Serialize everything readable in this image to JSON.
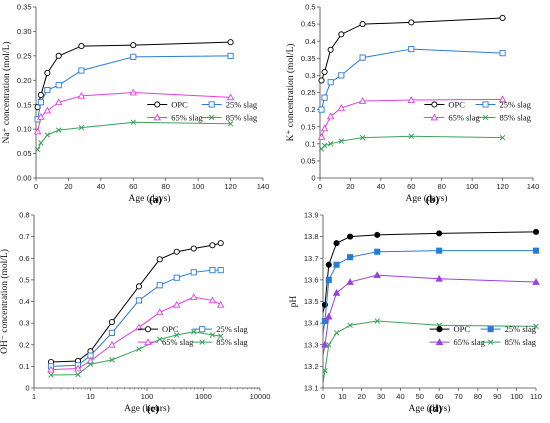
{
  "chart_data": [
    {
      "type": "line",
      "panel_label": "(a)",
      "xlabel": "Age (days)",
      "ylabel": "Na⁺ concentration (mol/L)",
      "xlim": [
        0,
        140
      ],
      "ylim": [
        0,
        0.35
      ],
      "x_ticks": [
        "0",
        "20",
        "40",
        "60",
        "80",
        "100",
        "120",
        "140"
      ],
      "y_ticks": [
        "0.00",
        "0.05",
        "0.10",
        "0.15",
        "0.20",
        "0.25",
        "0.30",
        "0.35"
      ],
      "legend_position": "bottom-right",
      "legend_cols": 2,
      "series": [
        {
          "name": "OPC",
          "color": "#000000",
          "marker": "circle-open",
          "x": [
            1,
            3,
            7,
            14,
            28,
            60,
            120
          ],
          "y": [
            0.145,
            0.17,
            0.215,
            0.25,
            0.27,
            0.272,
            0.278
          ]
        },
        {
          "name": "25% slag",
          "color": "#2b7bd6",
          "marker": "square-open",
          "x": [
            1,
            3,
            7,
            14,
            28,
            60,
            120
          ],
          "y": [
            0.12,
            0.155,
            0.18,
            0.19,
            0.22,
            0.248,
            0.25
          ]
        },
        {
          "name": "65% slag",
          "color": "#e040e0",
          "marker": "triangle-open",
          "x": [
            1,
            3,
            7,
            14,
            28,
            60,
            120
          ],
          "y": [
            0.095,
            0.125,
            0.138,
            0.155,
            0.168,
            0.175,
            0.165
          ]
        },
        {
          "name": "85% slag",
          "color": "#3aa35a",
          "marker": "x",
          "x": [
            1,
            3,
            7,
            14,
            28,
            60,
            120
          ],
          "y": [
            0.058,
            0.072,
            0.088,
            0.098,
            0.103,
            0.114,
            0.111
          ]
        }
      ]
    },
    {
      "type": "line",
      "panel_label": "(b)",
      "xlabel": "Age (days)",
      "ylabel": "K⁺ concentration (mol/L)",
      "xlim": [
        0,
        140
      ],
      "ylim": [
        0,
        0.5
      ],
      "x_ticks": [
        "0",
        "20",
        "40",
        "60",
        "80",
        "100",
        "120",
        "140"
      ],
      "y_ticks": [
        "0",
        "0.05",
        "0.1",
        "0.15",
        "0.2",
        "0.25",
        "0.3",
        "0.35",
        "0.4",
        "0.45",
        "0.5"
      ],
      "legend_position": "bottom-right",
      "legend_cols": 2,
      "series": [
        {
          "name": "OPC",
          "color": "#000000",
          "marker": "circle-open",
          "x": [
            1,
            3,
            7,
            14,
            28,
            60,
            120
          ],
          "y": [
            0.285,
            0.31,
            0.375,
            0.42,
            0.45,
            0.455,
            0.468
          ]
        },
        {
          "name": "25% slag",
          "color": "#2b7bd6",
          "marker": "square-open",
          "x": [
            1,
            3,
            7,
            14,
            28,
            60,
            120
          ],
          "y": [
            0.2,
            0.235,
            0.28,
            0.3,
            0.352,
            0.377,
            0.365
          ]
        },
        {
          "name": "65% slag",
          "color": "#e040e0",
          "marker": "triangle-open",
          "x": [
            1,
            3,
            7,
            14,
            28,
            60,
            120
          ],
          "y": [
            0.12,
            0.145,
            0.18,
            0.205,
            0.225,
            0.228,
            0.23
          ]
        },
        {
          "name": "85% slag",
          "color": "#3aa35a",
          "marker": "x",
          "x": [
            1,
            3,
            7,
            14,
            28,
            60,
            120
          ],
          "y": [
            0.085,
            0.095,
            0.1,
            0.108,
            0.118,
            0.122,
            0.118
          ]
        }
      ]
    },
    {
      "type": "line",
      "panel_label": "(c)",
      "xlabel": "Age (hours)",
      "ylabel": "OH⁻ concentration (mol/L)",
      "x_scale": "log",
      "xlim": [
        1,
        10000
      ],
      "ylim": [
        0,
        0.8
      ],
      "x_ticks": [
        "1",
        "10",
        "100",
        "1000",
        "10000"
      ],
      "y_ticks": [
        "0",
        "0.1",
        "0.2",
        "0.3",
        "0.4",
        "0.5",
        "0.6",
        "0.7",
        "0.8"
      ],
      "legend_position": "bottom-right",
      "legend_cols": 2,
      "series": [
        {
          "name": "OPC",
          "color": "#000000",
          "marker": "circle-open",
          "x": [
            2,
            6,
            10,
            24,
            72,
            168,
            336,
            672,
            1440,
            2016
          ],
          "y": [
            0.12,
            0.125,
            0.17,
            0.305,
            0.47,
            0.595,
            0.63,
            0.645,
            0.66,
            0.67
          ]
        },
        {
          "name": "25% slag",
          "color": "#2b7bd6",
          "marker": "square-open",
          "x": [
            2,
            6,
            10,
            24,
            72,
            168,
            336,
            672,
            1440,
            2016
          ],
          "y": [
            0.1,
            0.105,
            0.15,
            0.255,
            0.405,
            0.475,
            0.51,
            0.535,
            0.545,
            0.545
          ]
        },
        {
          "name": "65% slag",
          "color": "#e040e0",
          "marker": "triangle-open",
          "x": [
            2,
            6,
            10,
            24,
            72,
            168,
            336,
            672,
            1440,
            2016
          ],
          "y": [
            0.085,
            0.09,
            0.125,
            0.2,
            0.28,
            0.35,
            0.385,
            0.42,
            0.405,
            0.385
          ]
        },
        {
          "name": "85% slag",
          "color": "#3aa35a",
          "marker": "x",
          "x": [
            2,
            6,
            10,
            24,
            72,
            168,
            336,
            672,
            1440,
            2016
          ],
          "y": [
            0.06,
            0.062,
            0.11,
            0.13,
            0.18,
            0.225,
            0.245,
            0.26,
            0.245,
            0.24
          ]
        }
      ]
    },
    {
      "type": "line",
      "panel_label": "(d)",
      "xlabel": "Age (days)",
      "ylabel": "pH",
      "xlim": [
        0,
        110
      ],
      "ylim": [
        13.1,
        13.9
      ],
      "x_ticks": [
        "0",
        "10",
        "20",
        "30",
        "40",
        "50",
        "60",
        "70",
        "80",
        "90",
        "100",
        "110"
      ],
      "y_ticks": [
        "13.1",
        "13.2",
        "13.3",
        "13.4",
        "13.5",
        "13.6",
        "13.7",
        "13.8",
        "13.9"
      ],
      "legend_position": "bottom-right",
      "legend_cols": 2,
      "series": [
        {
          "name": "OPC",
          "color": "#000000",
          "marker": "circle-filled",
          "x": [
            0,
            1,
            3,
            7,
            14,
            28,
            60,
            110
          ],
          "y": [
            13.45,
            13.485,
            13.67,
            13.77,
            13.8,
            13.808,
            13.815,
            13.822
          ],
          "marker_count": 7
        },
        {
          "name": "25% slag",
          "color": "#2b7bd6",
          "marker": "square-filled",
          "x": [
            0,
            1,
            3,
            7,
            14,
            28,
            60,
            110
          ],
          "y": [
            13.35,
            13.41,
            13.6,
            13.67,
            13.705,
            13.73,
            13.735,
            13.735
          ],
          "marker_count": 7
        },
        {
          "name": "65% slag",
          "color": "#9a40e0",
          "marker": "triangle-filled",
          "x": [
            0,
            1,
            3,
            7,
            14,
            28,
            60,
            110
          ],
          "y": [
            13.25,
            13.3,
            13.43,
            13.54,
            13.59,
            13.622,
            13.605,
            13.59
          ],
          "marker_count": 7
        },
        {
          "name": "85% slag",
          "color": "#3aa35a",
          "marker": "x",
          "x": [
            0,
            1,
            3,
            7,
            14,
            28,
            60,
            110
          ],
          "y": [
            13.12,
            13.18,
            13.3,
            13.355,
            13.39,
            13.41,
            13.39,
            13.385
          ],
          "marker_count": 7
        }
      ]
    }
  ]
}
